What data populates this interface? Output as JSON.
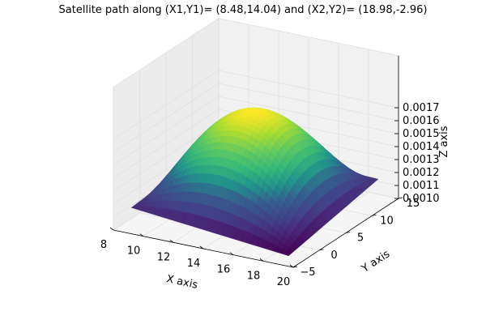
{
  "chart_data": {
    "type": "surface3d",
    "title": "Satellite path along (X1,Y1)= (8.48,14.04) and (X2,Y2)= (18.98,-2.96)",
    "xlabel": "X axis",
    "ylabel": "Y axis",
    "zlabel": "Z axis",
    "xlim": [
      8,
      20
    ],
    "ylim": [
      -5,
      15
    ],
    "zlim": [
      0.001,
      0.00175
    ],
    "x_ticks": [
      "8",
      "10",
      "12",
      "14",
      "16",
      "18",
      "20"
    ],
    "y_ticks": [
      "−5",
      "0",
      "5",
      "10",
      "15"
    ],
    "z_ticks": [
      "0.0010",
      "0.0011",
      "0.0012",
      "0.0013",
      "0.0014",
      "0.0015",
      "0.0016",
      "0.0017"
    ],
    "surface": {
      "x_range": [
        8.48,
        18.98
      ],
      "y_range": [
        -2.96,
        14.04
      ],
      "peak": {
        "x": 13.7,
        "y": 5.5,
        "z": 0.00176
      },
      "corner_values": {
        "x8.48_y-2.96": 0.00113,
        "x18.98_y-2.96": 0.00101,
        "x18.98_y14.04": 0.00115,
        "x8.48_y14.04": 0.0012
      },
      "grid": true
    },
    "colormap": "viridis",
    "grid": true
  }
}
